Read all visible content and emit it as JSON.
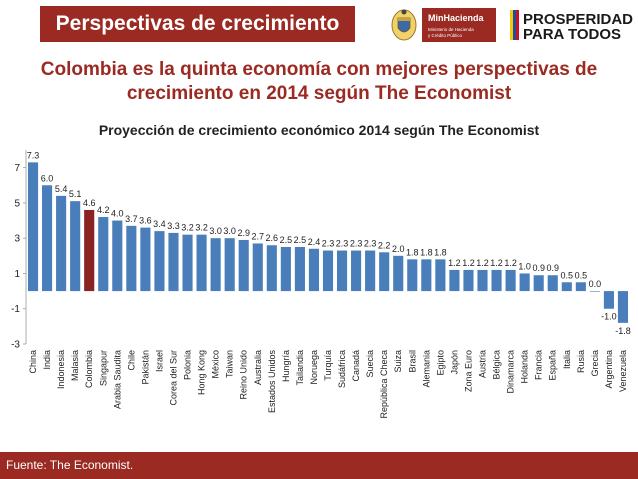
{
  "header": {
    "title": "Perspectivas de crecimiento",
    "logo_mh": {
      "name": "MinHacienda",
      "sub": "Ministerio de Hacienda y Crédito Público"
    },
    "logo_pp": {
      "line1": "PROSPERIDAD",
      "line2": "PARA TODOS"
    }
  },
  "headline": "Colombia es la quinta economía con mejores perspectivas de crecimiento en 2014 según The Economist",
  "footer": {
    "source": "Fuente: The Economist."
  },
  "colors": {
    "bar": "#4a7ebb",
    "highlight": "#8b2323",
    "accent": "#9b2a22"
  },
  "chart_data": {
    "type": "bar",
    "title": "Proyección de crecimiento económico 2014 según The Economist",
    "categories": [
      "China",
      "India",
      "Indonesia",
      "Malasia",
      "Colombia",
      "Singapur",
      "Arabia Saudita",
      "Chile",
      "Pakistán",
      "Israel",
      "Corea del Sur",
      "Polonia",
      "Hong Kong",
      "México",
      "Taiwan",
      "Reino Unido",
      "Australia",
      "Estados Unidos",
      "Hungría",
      "Tailandia",
      "Noruega",
      "Turquía",
      "Sudáfrica",
      "Canadá",
      "Suecia",
      "República Checa",
      "Suiza",
      "Brasil",
      "Alemania",
      "Egipto",
      "Japón",
      "Zona Euro",
      "Austria",
      "Bélgica",
      "Dinamarca",
      "Holanda",
      "Francia",
      "España",
      "Italia",
      "Rusia",
      "Grecia",
      "Argentina",
      "Venezuela"
    ],
    "values": [
      7.3,
      6.0,
      5.4,
      5.1,
      4.6,
      4.2,
      4.0,
      3.7,
      3.6,
      3.4,
      3.3,
      3.2,
      3.2,
      3.0,
      3.0,
      2.9,
      2.7,
      2.6,
      2.5,
      2.5,
      2.4,
      2.3,
      2.3,
      2.3,
      2.3,
      2.2,
      2.0,
      1.8,
      1.8,
      1.8,
      1.2,
      1.2,
      1.2,
      1.2,
      1.2,
      1.0,
      0.9,
      0.9,
      0.5,
      0.5,
      0.0,
      -1.0,
      -1.8
    ],
    "labels": [
      "7.3",
      "6.0",
      "5.4",
      "5.1",
      "4.6",
      "4.2",
      "4.0",
      "3.7",
      "3.6",
      "3.4",
      "3.3",
      "3.2",
      "3.2",
      "3.0",
      "3.0",
      "2.9",
      "2.7",
      "2.6",
      "2.5",
      "2.5",
      "2.4",
      "2.3",
      "2.3",
      "2.3",
      "2.3",
      "2.2",
      "2.0",
      "1.8",
      "1.8",
      "1.8",
      "1.2",
      "1.2",
      "1.2",
      "1.2",
      "1.2",
      "1.0",
      "0.9",
      "0.9",
      "0.5",
      "0.5",
      "0.0",
      "-1.0",
      "-1.8"
    ],
    "highlight": "Colombia",
    "ylim": [
      -3,
      8
    ],
    "yticks": [
      -3,
      -1,
      1,
      3,
      5,
      7
    ],
    "grid": false,
    "legend": "none"
  }
}
